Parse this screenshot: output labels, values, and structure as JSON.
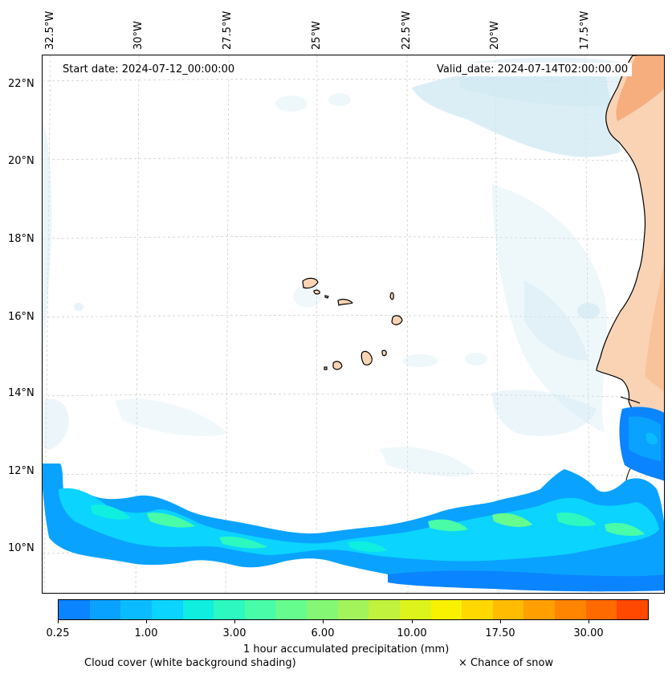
{
  "lon_labels": [
    {
      "text": "32.5°W"
    },
    {
      "text": "30°W"
    },
    {
      "text": "27.5°W"
    },
    {
      "text": "25°W"
    },
    {
      "text": "22.5°W"
    },
    {
      "text": "20°W"
    },
    {
      "text": "17.5°W"
    }
  ],
  "lat_labels": [
    {
      "text": "22°N"
    },
    {
      "text": "20°N"
    },
    {
      "text": "18°N"
    },
    {
      "text": "16°N"
    },
    {
      "text": "14°N"
    },
    {
      "text": "12°N"
    },
    {
      "text": "10°N"
    }
  ],
  "start_date": "Start date: 2024-07-12_00:00:00",
  "valid_date": "Valid_date: 2024-07-14T02:00:00.00",
  "colorbar": {
    "colors": [
      "#0a84ff",
      "#0aa2ff",
      "#0abcff",
      "#0ad4ff",
      "#10eee0",
      "#2cf8c0",
      "#48fca8",
      "#66fc8e",
      "#84f874",
      "#a2f45a",
      "#c0f23e",
      "#dcf41c",
      "#f8f200",
      "#ffd800",
      "#ffbc00",
      "#ffa000",
      "#ff8400",
      "#ff6a00",
      "#ff4800"
    ],
    "tick_labels": [
      "0.25",
      "1.00",
      "3.00",
      "6.00",
      "10.00",
      "17.50",
      "30.00"
    ],
    "label": "1 hour accumulated precipitation (mm)"
  },
  "legend": {
    "cloud_cover": "Cloud cover (white background shading)",
    "snow": "× Chance of snow"
  },
  "colors": {
    "land": "#f9d3b3",
    "land_desert": "#f4a16e",
    "cloud": "#cfe8f2",
    "coast": "#000000"
  }
}
